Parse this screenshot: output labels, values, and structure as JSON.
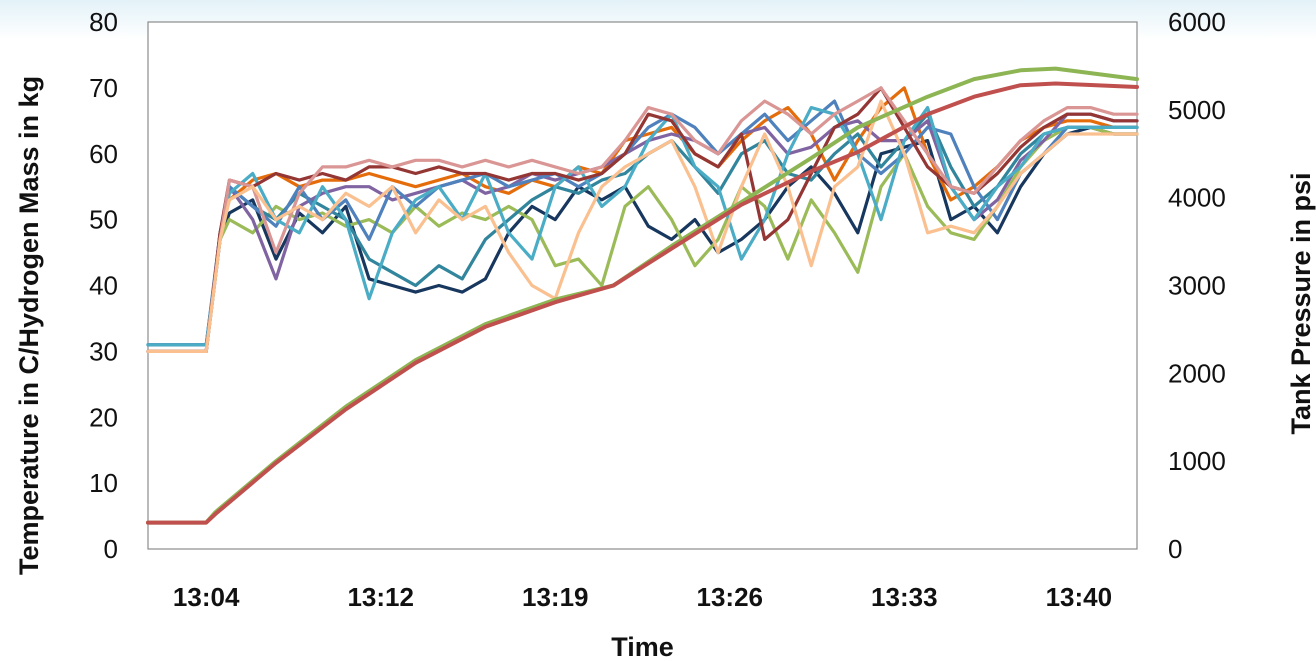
{
  "chart_data": {
    "type": "line",
    "xlabel": "Time",
    "ylabel_left": "Temperature in C/Hydrogen Mass in kg",
    "ylabel_right": "Tank Pressure in psi",
    "x_ticks": [
      "13:04",
      "13:12",
      "13:19",
      "13:26",
      "13:33",
      "13:40"
    ],
    "x_tick_minutes": [
      0,
      7.5,
      15,
      22.5,
      30,
      37.5
    ],
    "xlim_minutes": [
      -2.5,
      40
    ],
    "yleft_ticks": [
      "0",
      "10",
      "20",
      "30",
      "40",
      "50",
      "60",
      "70",
      "80"
    ],
    "yleft_lim": [
      0,
      80
    ],
    "yright_ticks": [
      "0",
      "1000",
      "2000",
      "3000",
      "4000",
      "5000",
      "6000"
    ],
    "yright_lim": [
      0,
      6000
    ],
    "grid": false,
    "legend": "none",
    "pressure_series": [
      {
        "color": "#8db554",
        "x": [
          -2.5,
          0,
          0.4,
          3,
          6,
          9,
          12,
          15,
          17.5,
          20,
          23,
          26,
          28,
          31,
          33,
          35,
          36.5,
          40
        ],
        "y": [
          300,
          300,
          420,
          1000,
          1620,
          2150,
          2560,
          2840,
          3000,
          3450,
          3950,
          4450,
          4800,
          5150,
          5350,
          5450,
          5470,
          5350
        ]
      },
      {
        "color": "#c0504d",
        "x": [
          -2.5,
          0,
          0.4,
          3,
          6,
          9,
          12,
          15,
          17.5,
          20,
          23,
          26,
          28,
          31,
          33,
          35,
          36.5,
          40
        ],
        "y": [
          300,
          300,
          400,
          980,
          1590,
          2120,
          2530,
          2810,
          3000,
          3420,
          3920,
          4300,
          4520,
          4950,
          5150,
          5280,
          5300,
          5260
        ]
      }
    ],
    "temperature_series": [
      {
        "color": "#17375e",
        "x": [
          -2.5,
          0,
          0.6,
          1,
          2,
          3,
          4,
          5,
          6,
          7,
          8,
          9,
          10,
          11,
          12,
          13,
          14,
          15,
          16,
          17,
          18,
          19,
          20,
          21,
          22,
          23,
          24,
          25,
          26,
          27,
          28,
          29,
          30,
          31,
          32,
          33,
          34,
          35,
          36,
          37,
          38,
          39,
          40
        ],
        "y": [
          31,
          31,
          47,
          51,
          53,
          44,
          51,
          48,
          52,
          41,
          40,
          39,
          40,
          39,
          41,
          48,
          52,
          50,
          55,
          53,
          55,
          49,
          47,
          50,
          45,
          47,
          50,
          55,
          58,
          54,
          48,
          60,
          61,
          62,
          50,
          52,
          48,
          55,
          60,
          63,
          64,
          63,
          63
        ]
      },
      {
        "color": "#e46c0a",
        "x": [
          -2.5,
          0,
          0.6,
          1,
          2,
          3,
          4,
          5,
          6,
          7,
          8,
          9,
          10,
          11,
          12,
          13,
          14,
          15,
          16,
          17,
          18,
          19,
          20,
          21,
          22,
          23,
          24,
          25,
          26,
          27,
          28,
          29,
          30,
          31,
          32,
          33,
          34,
          35,
          36,
          37,
          38,
          39,
          40
        ],
        "y": [
          30,
          30,
          48,
          53,
          56,
          57,
          55,
          56,
          56,
          57,
          56,
          55,
          56,
          57,
          55,
          54,
          56,
          55,
          58,
          57,
          62,
          63,
          64,
          60,
          58,
          62,
          65,
          67,
          63,
          56,
          62,
          67,
          70,
          60,
          53,
          55,
          58,
          62,
          64,
          65,
          65,
          64,
          64
        ]
      },
      {
        "color": "#9bbb59",
        "x": [
          -2.5,
          0,
          0.6,
          1,
          2,
          3,
          4,
          5,
          6,
          7,
          8,
          9,
          10,
          11,
          12,
          13,
          14,
          15,
          16,
          17,
          18,
          19,
          20,
          21,
          22,
          23,
          24,
          25,
          26,
          27,
          28,
          29,
          30,
          31,
          32,
          33,
          34,
          35,
          36,
          37,
          38,
          39,
          40
        ],
        "y": [
          30,
          30,
          47,
          50,
          48,
          52,
          50,
          51,
          49,
          50,
          48,
          52,
          49,
          51,
          50,
          52,
          50,
          43,
          44,
          40,
          52,
          55,
          50,
          43,
          47,
          55,
          52,
          44,
          53,
          48,
          42,
          55,
          60,
          52,
          48,
          47,
          52,
          58,
          62,
          64,
          64,
          63,
          63
        ]
      },
      {
        "color": "#31859c",
        "x": [
          -2.5,
          0,
          0.6,
          1,
          2,
          3,
          4,
          5,
          6,
          7,
          8,
          9,
          10,
          11,
          12,
          13,
          14,
          15,
          16,
          17,
          18,
          19,
          20,
          21,
          22,
          23,
          24,
          25,
          26,
          27,
          28,
          29,
          30,
          31,
          32,
          33,
          34,
          35,
          36,
          37,
          38,
          39,
          40
        ],
        "y": [
          30,
          30,
          47,
          55,
          52,
          50,
          54,
          52,
          50,
          44,
          42,
          40,
          43,
          41,
          47,
          50,
          53,
          55,
          54,
          56,
          57,
          60,
          62,
          58,
          54,
          60,
          62,
          57,
          56,
          60,
          63,
          58,
          62,
          66,
          58,
          52,
          55,
          60,
          63,
          64,
          64,
          64,
          64
        ]
      },
      {
        "color": "#8064a2",
        "x": [
          -2.5,
          0,
          0.6,
          1,
          2,
          3,
          4,
          5,
          6,
          7,
          8,
          9,
          10,
          11,
          12,
          13,
          14,
          15,
          16,
          17,
          18,
          19,
          20,
          21,
          22,
          23,
          24,
          25,
          26,
          27,
          28,
          29,
          30,
          31,
          32,
          33,
          34,
          35,
          36,
          37,
          38,
          39,
          40
        ],
        "y": [
          30,
          30,
          48,
          55,
          50,
          41,
          52,
          54,
          55,
          55,
          53,
          54,
          55,
          56,
          54,
          55,
          57,
          56,
          57,
          58,
          60,
          62,
          63,
          62,
          60,
          63,
          64,
          60,
          61,
          64,
          65,
          62,
          62,
          65,
          55,
          50,
          53,
          59,
          62,
          66,
          66,
          65,
          65
        ]
      },
      {
        "color": "#4f81bd",
        "x": [
          -2.5,
          0,
          0.6,
          1,
          2,
          3,
          4,
          5,
          6,
          7,
          8,
          9,
          10,
          11,
          12,
          13,
          14,
          15,
          16,
          17,
          18,
          19,
          20,
          21,
          22,
          23,
          24,
          25,
          26,
          27,
          28,
          29,
          30,
          31,
          32,
          33,
          34,
          35,
          36,
          37,
          38,
          39,
          40
        ],
        "y": [
          31,
          31,
          48,
          55,
          52,
          49,
          55,
          50,
          53,
          47,
          55,
          52,
          55,
          56,
          57,
          55,
          56,
          57,
          55,
          57,
          60,
          64,
          66,
          64,
          60,
          63,
          66,
          62,
          65,
          68,
          60,
          57,
          60,
          64,
          63,
          55,
          50,
          57,
          60,
          64,
          64,
          64,
          64
        ]
      },
      {
        "color": "#4bacc6",
        "x": [
          -2.5,
          0,
          0.6,
          1,
          2,
          3,
          4,
          5,
          6,
          7,
          8,
          9,
          10,
          11,
          12,
          13,
          14,
          15,
          16,
          17,
          18,
          19,
          20,
          21,
          22,
          23,
          24,
          25,
          26,
          27,
          28,
          29,
          30,
          31,
          32,
          33,
          34,
          35,
          36,
          37,
          38,
          39,
          40
        ],
        "y": [
          31,
          31,
          47,
          54,
          57,
          50,
          48,
          55,
          50,
          38,
          48,
          53,
          55,
          50,
          57,
          48,
          44,
          55,
          58,
          52,
          55,
          62,
          66,
          58,
          55,
          44,
          50,
          60,
          67,
          66,
          60,
          50,
          62,
          67,
          55,
          50,
          55,
          58,
          63,
          64,
          64,
          64,
          64
        ]
      },
      {
        "color": "#943634",
        "x": [
          -2.5,
          0,
          0.6,
          1,
          2,
          3,
          4,
          5,
          6,
          7,
          8,
          9,
          10,
          11,
          12,
          13,
          14,
          15,
          16,
          17,
          18,
          19,
          20,
          21,
          22,
          23,
          24,
          25,
          26,
          27,
          28,
          29,
          30,
          31,
          32,
          33,
          34,
          35,
          36,
          37,
          38,
          39,
          40
        ],
        "y": [
          30,
          30,
          48,
          56,
          55,
          57,
          56,
          57,
          56,
          58,
          58,
          57,
          58,
          57,
          57,
          56,
          57,
          57,
          56,
          57,
          60,
          66,
          65,
          60,
          58,
          63,
          47,
          50,
          57,
          64,
          66,
          70,
          64,
          58,
          55,
          54,
          57,
          61,
          64,
          66,
          66,
          65,
          65
        ]
      },
      {
        "color": "#d99694",
        "x": [
          -2.5,
          0,
          0.6,
          1,
          2,
          3,
          4,
          5,
          6,
          7,
          8,
          9,
          10,
          11,
          12,
          13,
          14,
          15,
          16,
          17,
          18,
          19,
          20,
          21,
          22,
          23,
          24,
          25,
          26,
          27,
          28,
          29,
          30,
          31,
          32,
          33,
          34,
          35,
          36,
          37,
          38,
          39,
          40
        ],
        "y": [
          30,
          30,
          47,
          56,
          55,
          45,
          54,
          58,
          58,
          59,
          58,
          59,
          59,
          58,
          59,
          58,
          59,
          58,
          57,
          58,
          62,
          67,
          66,
          62,
          60,
          65,
          68,
          66,
          63,
          66,
          68,
          70,
          65,
          60,
          55,
          54,
          58,
          62,
          65,
          67,
          67,
          66,
          66
        ]
      },
      {
        "color": "#fac08f",
        "x": [
          -2.5,
          0,
          0.6,
          1,
          2,
          3,
          4,
          5,
          6,
          7,
          8,
          9,
          10,
          11,
          12,
          13,
          14,
          15,
          16,
          17,
          18,
          19,
          20,
          21,
          22,
          23,
          24,
          25,
          26,
          27,
          28,
          29,
          30,
          31,
          32,
          33,
          34,
          35,
          36,
          37,
          38,
          39,
          40
        ],
        "y": [
          30,
          30,
          47,
          53,
          55,
          50,
          52,
          50,
          54,
          52,
          55,
          48,
          53,
          50,
          52,
          45,
          40,
          38,
          48,
          55,
          58,
          60,
          62,
          55,
          45,
          55,
          63,
          55,
          43,
          55,
          58,
          68,
          60,
          48,
          49,
          48,
          52,
          57,
          60,
          63,
          63,
          63,
          63
        ]
      }
    ]
  }
}
